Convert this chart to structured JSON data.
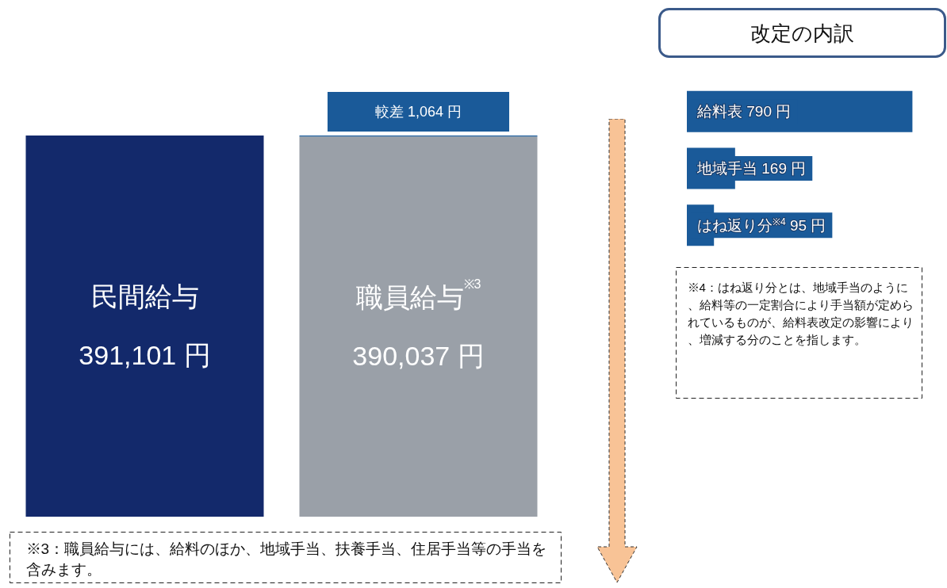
{
  "chart_data": [
    {
      "type": "bar",
      "stacked": true,
      "categories": [
        "民間給与",
        "職員給与$^{※3}$"
      ],
      "series": [
        {
          "values": [
            391101,
            390037
          ],
          "colors": [
            "#13296b",
            "#9aa0a8"
          ],
          "value_labels": [
            "391,101 円",
            "390,037 円"
          ]
        },
        {
          "values": [
            null,
            1064
          ],
          "color": "#1a5a99",
          "value_labels": [
            null,
            "較差 1,064 円"
          ]
        }
      ],
      "annotations": [
        "※3：職員給与には、給料のほか、地域手当、扶養手当、住居手当等の手当を含みます。"
      ]
    },
    {
      "type": "other",
      "title": "改定の内訳",
      "categories": [
        "給料表",
        "地域手当",
        "はね返り分$^{※4}$"
      ],
      "values": [
        790,
        169,
        95
      ],
      "value_labels": [
        "790 円",
        "169 円",
        "95 円"
      ],
      "color": "#1a5a99",
      "annotations": [
        "※4：はね返り分とは、地域手当のように、給料等の一定割合により手当額が定められているものが、給料表改定の影響により、増減する分のことを指します。"
      ]
    }
  ]
}
